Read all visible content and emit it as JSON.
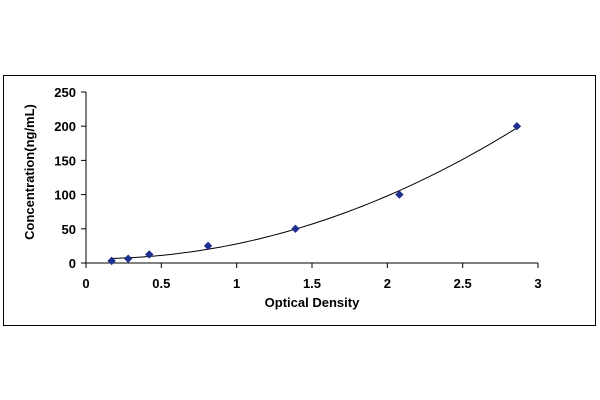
{
  "chart_data": {
    "type": "scatter",
    "title": "",
    "xlabel": "Optical Density",
    "ylabel": "Concentration(ng/mL)",
    "xlim": [
      0,
      3
    ],
    "ylim": [
      0,
      250
    ],
    "x_ticks": [
      0,
      0.5,
      1,
      1.5,
      2,
      2.5,
      3
    ],
    "x_tick_labels": [
      "0",
      "0.5",
      "1",
      "1.5",
      "2",
      "2.5",
      "3"
    ],
    "y_ticks": [
      0,
      50,
      100,
      150,
      200,
      250
    ],
    "y_tick_labels": [
      "0",
      "50",
      "100",
      "150",
      "200",
      "250"
    ],
    "grid": false,
    "legend": "none",
    "series": [
      {
        "points": [
          {
            "x": 0.17,
            "y": 3.12
          },
          {
            "x": 0.28,
            "y": 6.25
          },
          {
            "x": 0.42,
            "y": 12.5
          },
          {
            "x": 0.81,
            "y": 25
          },
          {
            "x": 1.39,
            "y": 50
          },
          {
            "x": 2.08,
            "y": 100
          },
          {
            "x": 2.86,
            "y": 200
          }
        ],
        "trendline": "polynomial",
        "marker": "diamond"
      }
    ],
    "colors": {
      "marker": "#1f2f8f",
      "line": "#000000"
    }
  }
}
